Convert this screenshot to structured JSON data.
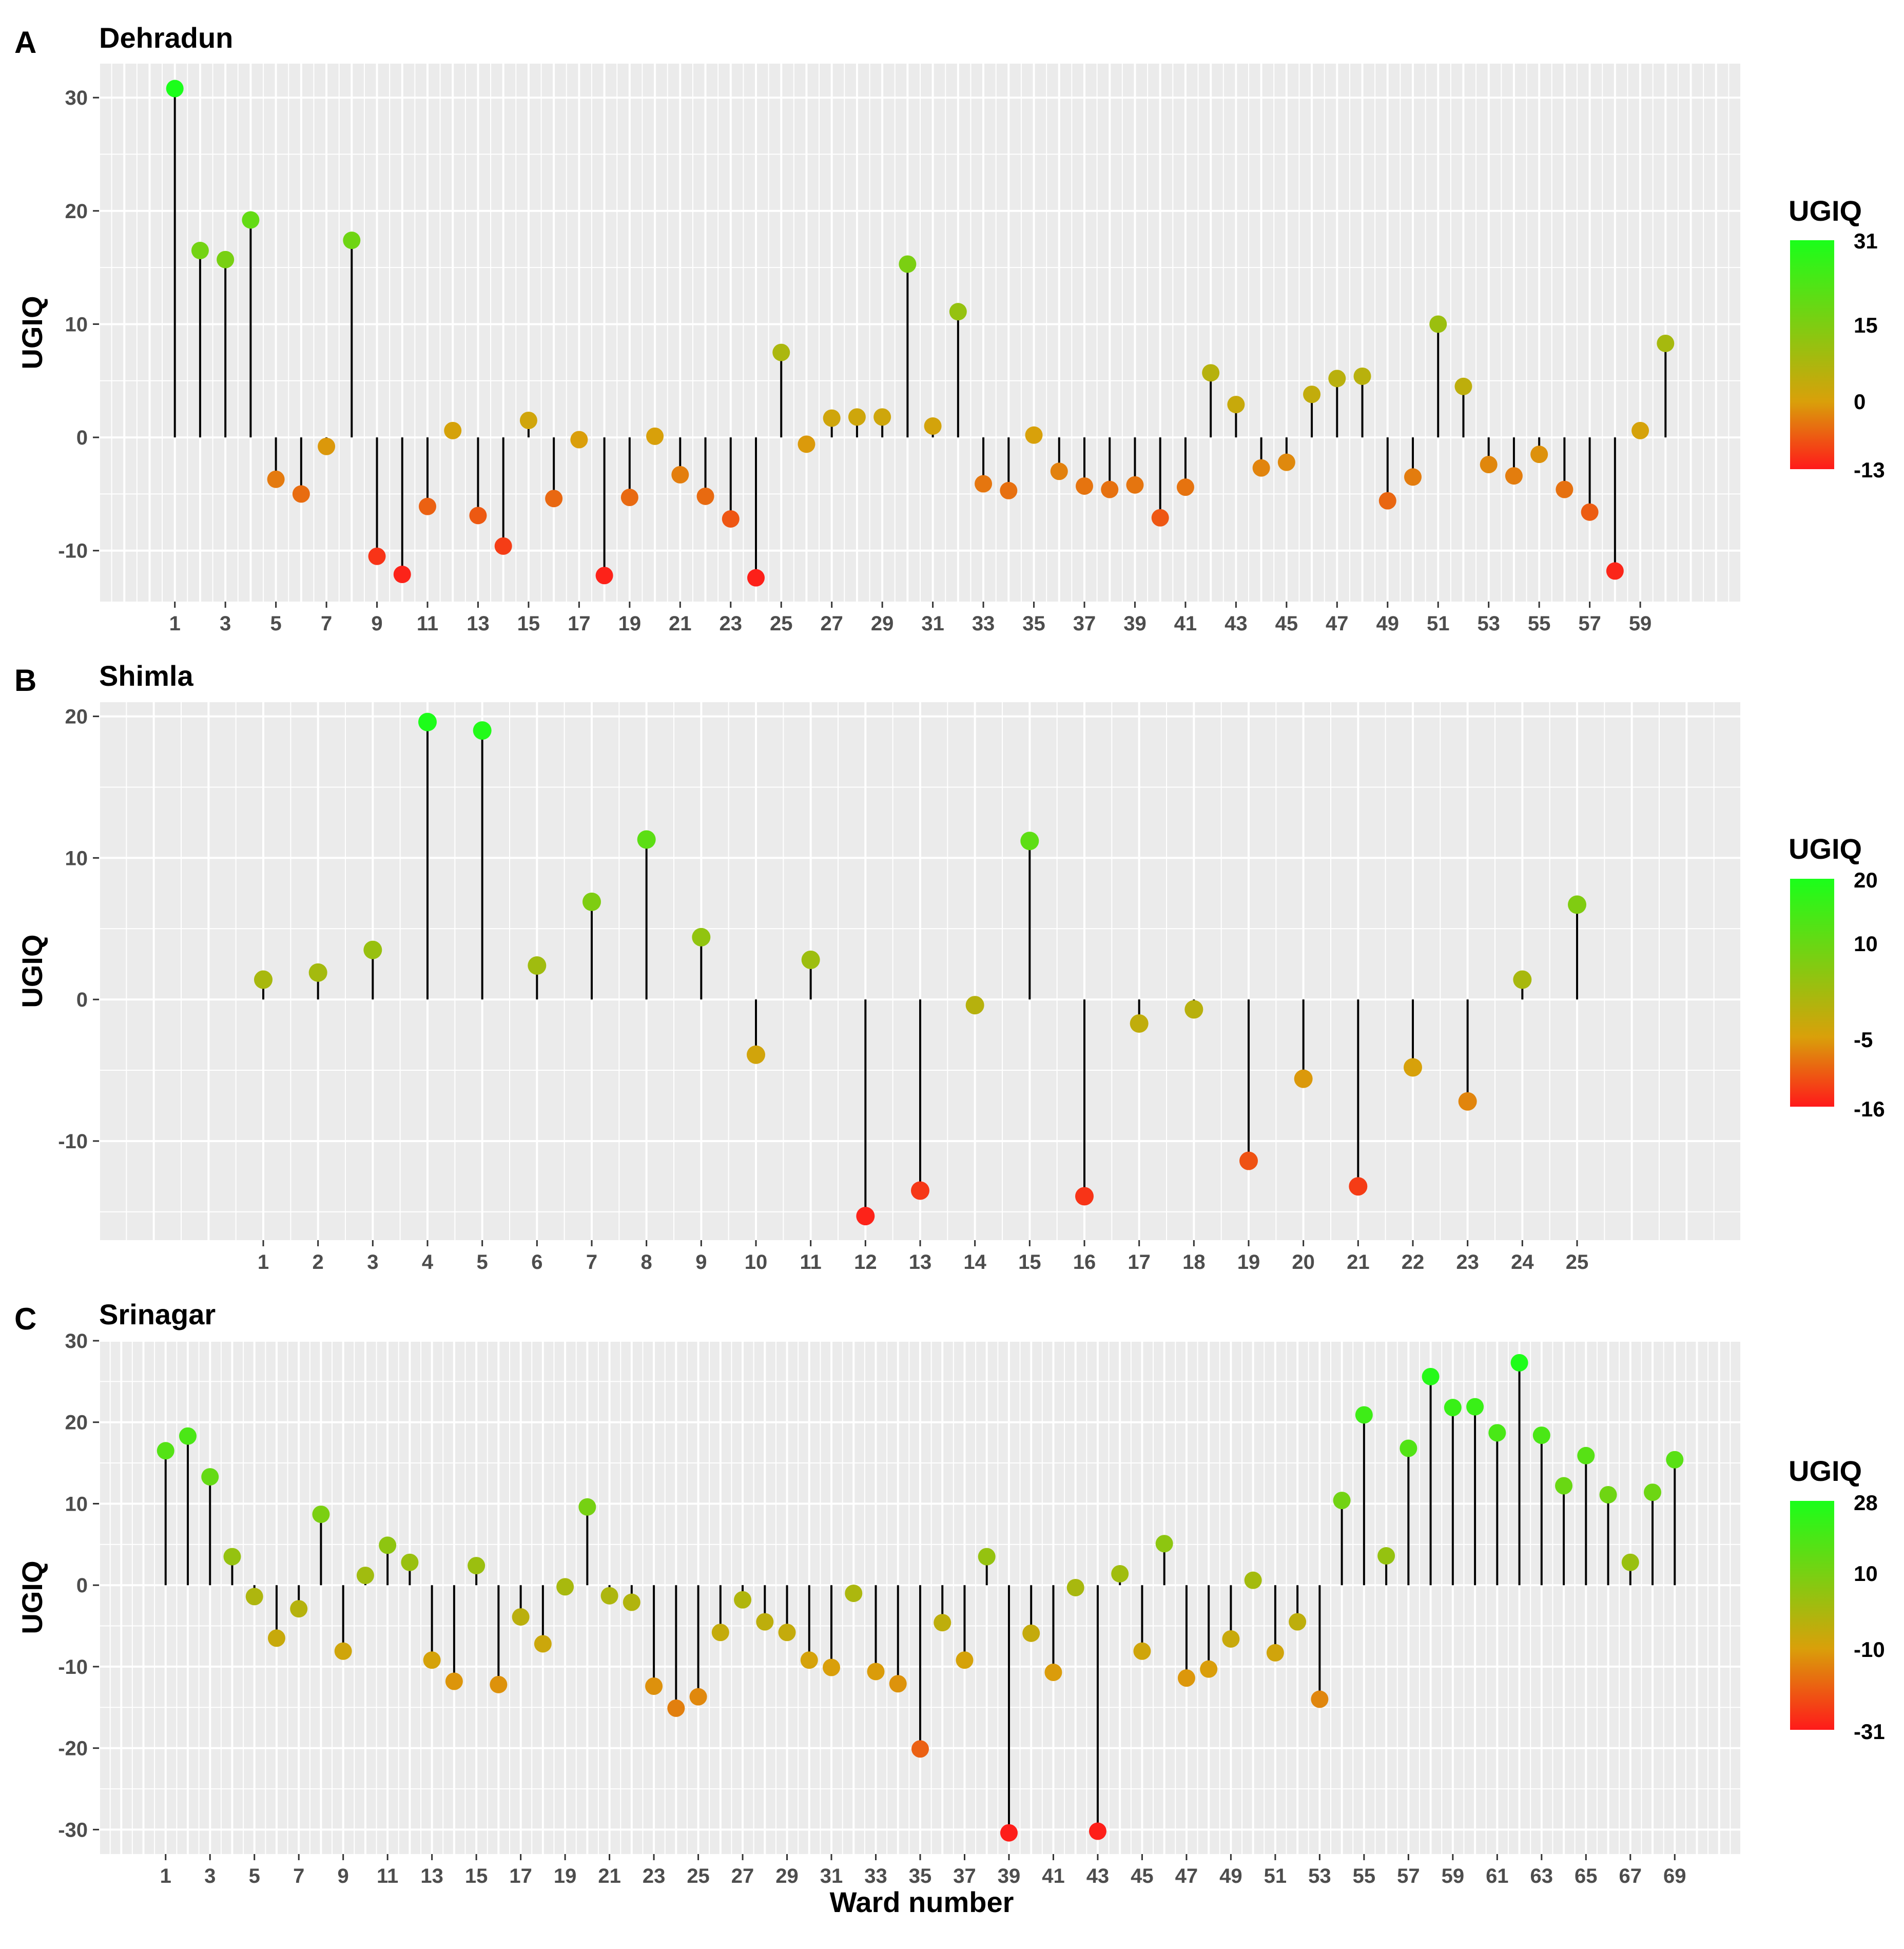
{
  "colors": {
    "low": "#ff1a1a",
    "mid": "#d9a00a",
    "high": "#1aff1a",
    "panel_bg": "#ebebeb",
    "grid": "#ffffff",
    "stem": "#000000"
  },
  "xlabel": "Ward number",
  "chart_data": [
    {
      "type": "lollipop",
      "panel": "A",
      "title": "Dehradun",
      "xlabel": "Ward number",
      "ylabel": "UGIQ",
      "ylim": [
        -14.5,
        33
      ],
      "yticks": [
        -10,
        0,
        10,
        20,
        30
      ],
      "x": [
        1,
        2,
        3,
        4,
        5,
        6,
        7,
        8,
        9,
        10,
        11,
        12,
        13,
        14,
        15,
        16,
        17,
        18,
        19,
        20,
        21,
        22,
        23,
        24,
        25,
        26,
        27,
        28,
        29,
        30,
        31,
        32,
        33,
        34,
        35,
        36,
        37,
        38,
        39,
        40,
        41,
        42,
        43,
        44,
        45,
        46,
        47,
        48,
        49,
        50,
        51,
        52,
        53,
        54,
        55,
        56,
        57,
        58,
        59,
        60
      ],
      "xticks": [
        "1",
        "3",
        "5",
        "7",
        "9",
        "11",
        "13",
        "15",
        "17",
        "19",
        "21",
        "23",
        "25",
        "27",
        "29",
        "31",
        "33",
        "35",
        "37",
        "39",
        "41",
        "43",
        "45",
        "47",
        "49",
        "51",
        "53",
        "55",
        "57",
        "59"
      ],
      "values": [
        30.8,
        16.5,
        15.7,
        19.2,
        -3.7,
        -5,
        -0.8,
        17.4,
        -10.5,
        -12.1,
        -6.1,
        0.6,
        -6.9,
        -9.6,
        1.5,
        -5.4,
        -0.2,
        -12.2,
        -5.3,
        0.1,
        -3.3,
        -5.2,
        -7.2,
        -12.4,
        7.5,
        -0.6,
        1.7,
        1.8,
        1.8,
        15.3,
        1,
        11.1,
        -4.1,
        -4.7,
        0.2,
        -3,
        -4.3,
        -4.6,
        -4.2,
        -7.1,
        -4.4,
        5.7,
        2.9,
        -2.7,
        -2.2,
        3.8,
        5.2,
        5.4,
        -5.6,
        -3.5,
        10,
        4.5,
        -2.4,
        -3.4,
        -1.5,
        -4.6,
        -6.6,
        -11.8,
        0.6,
        8.3
      ],
      "legend": {
        "title": "UGIQ",
        "min": -13,
        "mid": 0,
        "max": 31,
        "ticks": [
          "31",
          "15",
          "0",
          "-13"
        ]
      }
    },
    {
      "type": "lollipop",
      "panel": "B",
      "title": "Shimla",
      "xlabel": "Ward number",
      "ylabel": "UGIQ",
      "ylim": [
        -17,
        21
      ],
      "yticks": [
        -10,
        0,
        10,
        20
      ],
      "x": [
        1,
        2,
        3,
        4,
        5,
        6,
        7,
        8,
        9,
        10,
        11,
        12,
        13,
        14,
        15,
        16,
        17,
        18,
        19,
        20,
        21,
        22,
        23,
        24,
        25
      ],
      "xticks": [
        "1",
        "2",
        "3",
        "4",
        "5",
        "6",
        "7",
        "8",
        "9",
        "10",
        "11",
        "12",
        "13",
        "14",
        "15",
        "16",
        "17",
        "18",
        "19",
        "20",
        "21",
        "22",
        "23",
        "24",
        "25"
      ],
      "values": [
        1.4,
        1.9,
        3.5,
        19.6,
        19,
        2.4,
        6.9,
        11.3,
        4.4,
        -3.9,
        2.8,
        -15.3,
        -13.5,
        -0.4,
        11.2,
        -13.9,
        -1.7,
        -0.7,
        -11.4,
        -5.6,
        -13.2,
        -4.8,
        -7.2,
        1.4,
        6.7
      ],
      "legend": {
        "title": "UGIQ",
        "min": -16,
        "mid": -5,
        "max": 20,
        "ticks": [
          "20",
          "10",
          "-5",
          "-16"
        ]
      }
    },
    {
      "type": "lollipop",
      "panel": "C",
      "title": "Srinagar",
      "xlabel": "Ward number",
      "ylabel": "UGIQ",
      "ylim": [
        -33,
        30
      ],
      "yticks": [
        -30,
        -20,
        -10,
        0,
        10,
        20,
        30
      ],
      "x": [
        1,
        2,
        3,
        4,
        5,
        6,
        7,
        8,
        9,
        10,
        11,
        12,
        13,
        14,
        15,
        16,
        17,
        18,
        19,
        20,
        21,
        22,
        23,
        24,
        25,
        26,
        27,
        28,
        29,
        30,
        31,
        32,
        33,
        34,
        35,
        36,
        37,
        38,
        39,
        40,
        41,
        42,
        43,
        44,
        45,
        46,
        47,
        48,
        49,
        50,
        51,
        52,
        53,
        54,
        55,
        56,
        57,
        58,
        59,
        60,
        61,
        62,
        63,
        64,
        65,
        66,
        67,
        68,
        69
      ],
      "xticks": [
        "1",
        "3",
        "5",
        "7",
        "9",
        "11",
        "13",
        "15",
        "17",
        "19",
        "21",
        "23",
        "25",
        "27",
        "29",
        "31",
        "33",
        "35",
        "37",
        "39",
        "41",
        "43",
        "45",
        "47",
        "49",
        "51",
        "53",
        "55",
        "57",
        "59",
        "61",
        "63",
        "65",
        "67",
        "69"
      ],
      "values": [
        16.5,
        18.3,
        13.3,
        3.5,
        -1.4,
        -6.5,
        -2.9,
        8.7,
        -8.1,
        1.2,
        4.9,
        2.8,
        -9.2,
        -11.8,
        2.4,
        -12.2,
        -3.9,
        -7.2,
        -0.2,
        9.6,
        -1.3,
        -2.1,
        -12.4,
        -15.1,
        -13.7,
        -5.8,
        -1.8,
        -4.5,
        -5.8,
        -9.2,
        -10.1,
        -1,
        -10.6,
        -12.1,
        -20.1,
        -4.6,
        -9.2,
        3.5,
        -30.4,
        -5.9,
        -10.7,
        -0.3,
        -30.2,
        1.4,
        -8.1,
        5.1,
        -11.4,
        -10.3,
        -6.6,
        0.6,
        -8.3,
        -4.5,
        -14,
        10.4,
        20.9,
        3.6,
        16.8,
        25.6,
        21.8,
        21.9,
        18.7,
        27.3,
        18.4,
        12.2,
        15.9,
        11.1,
        2.8,
        11.4,
        15.4
      ],
      "legend": {
        "title": "UGIQ",
        "min": -31,
        "mid": -10,
        "max": 28,
        "ticks": [
          "28",
          "10",
          "-10",
          "-31"
        ]
      }
    }
  ]
}
